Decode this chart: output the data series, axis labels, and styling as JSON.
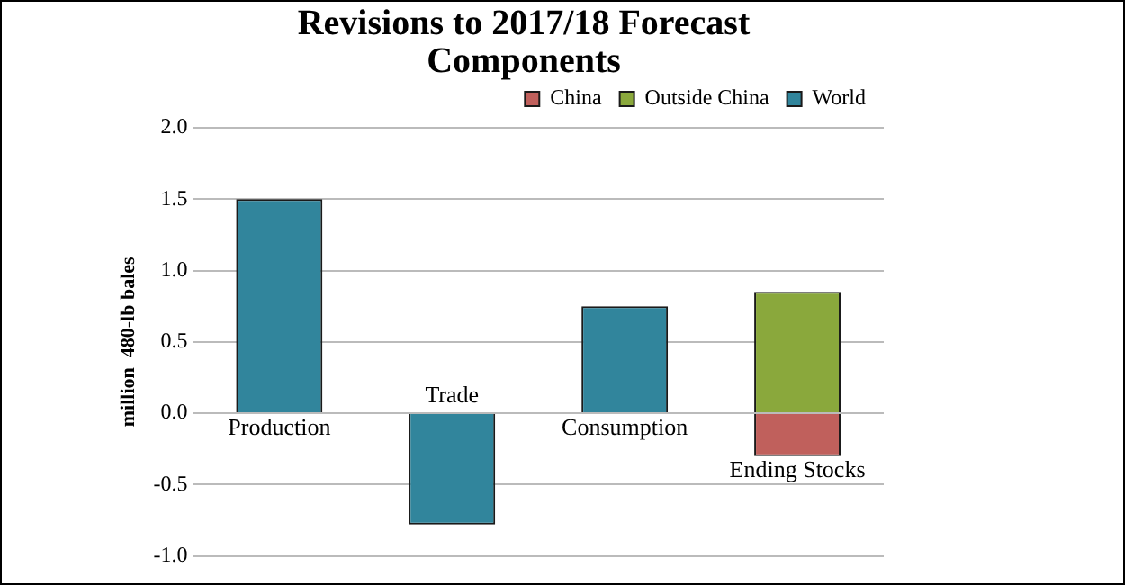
{
  "chart_data": {
    "type": "bar",
    "title": "Revisions to 2017/18 Forecast Components",
    "ylabel": "million  480-lb bales",
    "categories": [
      "Production",
      "Trade",
      "Consumption",
      "Ending Stocks"
    ],
    "series": [
      {
        "name": "China",
        "color": "#c0605c",
        "values": [
          null,
          null,
          null,
          -0.3
        ]
      },
      {
        "name": "Outside China",
        "color": "#8aa83c",
        "values": [
          null,
          null,
          null,
          0.85
        ]
      },
      {
        "name": "World",
        "color": "#31859c",
        "values": [
          1.5,
          -0.78,
          0.75,
          null
        ]
      }
    ],
    "stacked": true,
    "ylim": [
      -1.0,
      2.0
    ],
    "yticks": [
      {
        "value": -1,
        "label": "-1.0"
      },
      {
        "value": -0.5,
        "label": "-0.5"
      },
      {
        "value": 0,
        "label": "0.0"
      },
      {
        "value": 0.5,
        "label": "0.5"
      },
      {
        "value": 1,
        "label": "1.0"
      },
      {
        "value": 1.5,
        "label": "1.5"
      },
      {
        "value": 2,
        "label": "2.0"
      }
    ],
    "grid": "y",
    "legend": "top right"
  }
}
